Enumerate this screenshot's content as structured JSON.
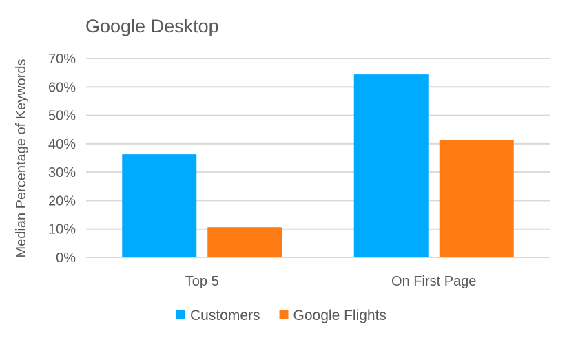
{
  "chart_data": {
    "type": "bar",
    "title": "Google Desktop",
    "xlabel": "",
    "ylabel": "Median Percentage of Keywords",
    "categories": [
      "Top 5",
      "On First Page"
    ],
    "series": [
      {
        "name": "Customers",
        "color": "#00AAFF",
        "values": [
          36.3,
          64.4
        ]
      },
      {
        "name": "Google Flights",
        "color": "#FF7C14",
        "values": [
          10.6,
          41.2
        ]
      }
    ],
    "ylim": [
      0,
      70
    ],
    "yticks": [
      "0%",
      "10%",
      "20%",
      "30%",
      "40%",
      "50%",
      "60%",
      "70%"
    ],
    "grid": true,
    "legend_position": "bottom"
  }
}
